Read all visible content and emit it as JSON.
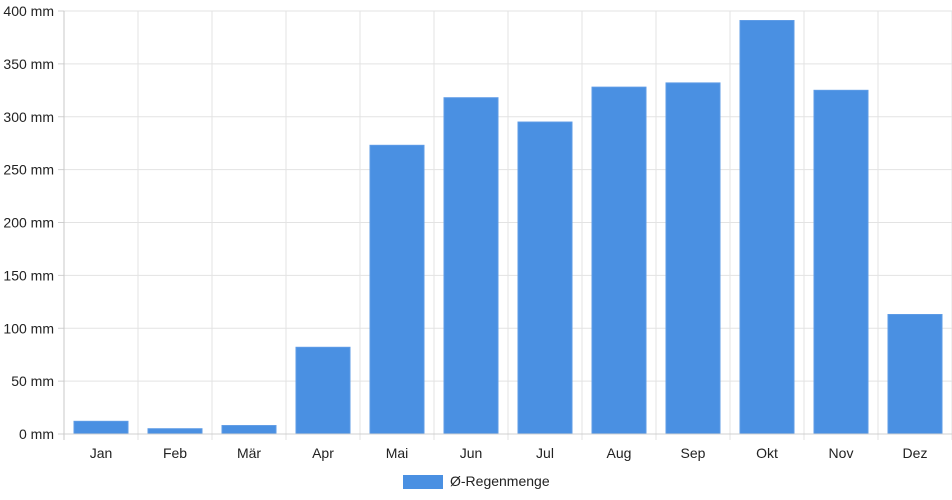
{
  "chart_data": {
    "type": "bar",
    "categories": [
      "Jan",
      "Feb",
      "Mär",
      "Apr",
      "Mai",
      "Jun",
      "Jul",
      "Aug",
      "Sep",
      "Okt",
      "Nov",
      "Dez"
    ],
    "series": [
      {
        "name": "Ø-Regenmenge",
        "values": [
          12,
          5,
          8,
          82,
          273,
          318,
          295,
          328,
          332,
          391,
          325,
          113
        ],
        "color": "#4a90e2"
      }
    ],
    "ylim": [
      0,
      400
    ],
    "yticks": [
      0,
      50,
      100,
      150,
      200,
      250,
      300,
      350,
      400
    ],
    "yunit": "mm",
    "grid": true,
    "legend_position": "bottom-center"
  }
}
